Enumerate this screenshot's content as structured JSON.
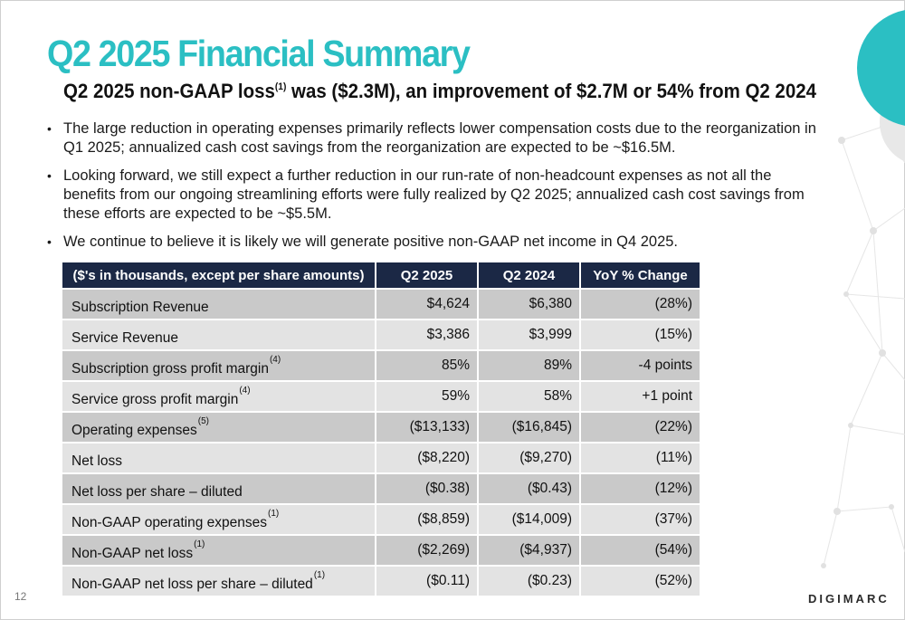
{
  "slide": {
    "title": "Q2 2025 Financial Summary",
    "subtitle_main": "Q2 2025 non-GAAP loss",
    "subtitle_sup": "(1)",
    "subtitle_rest": " was ($2.3M), an improvement of $2.7M or 54% from Q2 2024",
    "page_number": "12",
    "logo_text": "DIGIMARC"
  },
  "bullets": [
    "The large reduction in operating expenses primarily reflects lower compensation costs due to the reorganization in Q1 2025; annualized cash cost savings from the reorganization are expected to be ~$16.5M.",
    "Looking forward, we still expect a further reduction in our run-rate of non-headcount expenses as not all the benefits from our ongoing streamlining efforts were fully realized by Q2 2025; annualized cash cost savings from these efforts are expected to be ~$5.5M.",
    "We continue to believe it is likely we will generate positive non-GAAP net income in Q4 2025."
  ],
  "table": {
    "headers": [
      "($'s in thousands, except per share amounts)",
      "Q2 2025",
      "Q2 2024",
      "YoY % Change"
    ],
    "rows": [
      {
        "label": "Subscription Revenue",
        "footnote": "",
        "q2_2025": "$4,624",
        "q2_2024": "$6,380",
        "yoy": "(28%)"
      },
      {
        "label": "Service Revenue",
        "footnote": "",
        "q2_2025": "$3,386",
        "q2_2024": "$3,999",
        "yoy": "(15%)"
      },
      {
        "label": "Subscription gross profit margin",
        "footnote": "(4)",
        "q2_2025": "85%",
        "q2_2024": "89%",
        "yoy": "-4 points"
      },
      {
        "label": "Service gross profit margin",
        "footnote": "(4)",
        "q2_2025": "59%",
        "q2_2024": "58%",
        "yoy": "+1 point"
      },
      {
        "label": "Operating expenses",
        "footnote": "(5)",
        "q2_2025": "($13,133)",
        "q2_2024": "($16,845)",
        "yoy": "(22%)"
      },
      {
        "label": "Net loss",
        "footnote": "",
        "q2_2025": "($8,220)",
        "q2_2024": "($9,270)",
        "yoy": "(11%)"
      },
      {
        "label": "Net loss per share – diluted",
        "footnote": "",
        "q2_2025": "($0.38)",
        "q2_2024": "($0.43)",
        "yoy": "(12%)"
      },
      {
        "label": "Non-GAAP operating expenses",
        "footnote": "(1)",
        "q2_2025": "($8,859)",
        "q2_2024": "($14,009)",
        "yoy": "(37%)"
      },
      {
        "label": "Non-GAAP net loss",
        "footnote": "(1)",
        "q2_2025": "($2,269)",
        "q2_2024": "($4,937)",
        "yoy": "(54%)"
      },
      {
        "label": "Non-GAAP net loss per share – diluted",
        "footnote": "(1)",
        "q2_2025": "($0.11)",
        "q2_2024": "($0.23)",
        "yoy": "(52%)"
      }
    ]
  },
  "colors": {
    "title": "#2bbfc3",
    "header_bg": "#1b2845",
    "row_dark": "#c9c9c9",
    "row_light": "#e3e3e3",
    "accent_circle": "#2bbfc3"
  }
}
